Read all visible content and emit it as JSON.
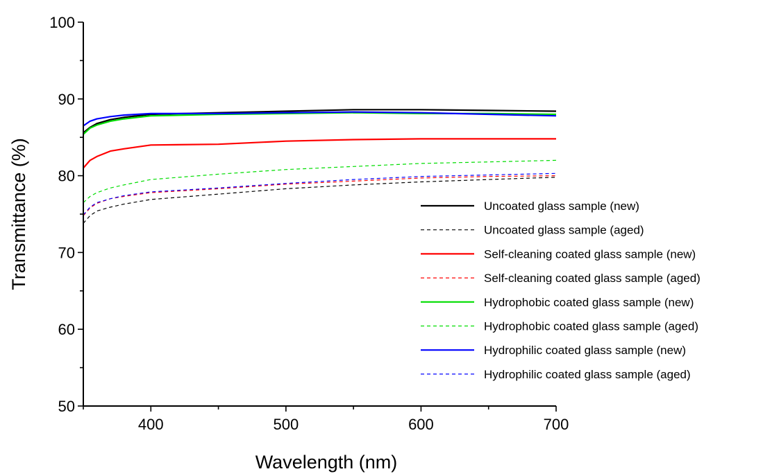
{
  "chart_data": {
    "type": "line",
    "title": "",
    "xlabel": "Wavelength (nm)",
    "ylabel": "Transmittance (%)",
    "xlim": [
      350,
      700
    ],
    "ylim": [
      50,
      100
    ],
    "xticks": [
      400,
      500,
      600,
      700
    ],
    "yticks": [
      50,
      60,
      70,
      80,
      90,
      100
    ],
    "grid": false,
    "legend": "center-right",
    "series": [
      {
        "name": "Uncoated  glass sample (new)",
        "color": "#000000",
        "dash": false,
        "x": [
          350,
          355,
          360,
          370,
          380,
          400,
          450,
          500,
          550,
          600,
          650,
          700
        ],
        "y": [
          85.6,
          86.3,
          86.8,
          87.3,
          87.6,
          88.0,
          88.2,
          88.4,
          88.6,
          88.6,
          88.5,
          88.4
        ]
      },
      {
        "name": "Uncoated  glass sample (aged)",
        "color": "#000000",
        "dash": true,
        "x": [
          350,
          355,
          360,
          370,
          380,
          400,
          450,
          500,
          550,
          600,
          650,
          700
        ],
        "y": [
          73.8,
          74.8,
          75.4,
          75.9,
          76.3,
          76.9,
          77.6,
          78.3,
          78.8,
          79.2,
          79.5,
          79.8
        ]
      },
      {
        "name": "Self-cleaning coated  glass sample (new)",
        "color": "#ff0000",
        "dash": false,
        "x": [
          350,
          355,
          360,
          370,
          380,
          400,
          450,
          500,
          550,
          600,
          650,
          700
        ],
        "y": [
          81.0,
          82.0,
          82.5,
          83.2,
          83.5,
          84.0,
          84.1,
          84.5,
          84.7,
          84.8,
          84.8,
          84.8
        ]
      },
      {
        "name": "Self-cleaning coated  glass sample (aged)",
        "color": "#ff0000",
        "dash": true,
        "x": [
          350,
          355,
          360,
          370,
          380,
          400,
          450,
          500,
          550,
          600,
          650,
          700
        ],
        "y": [
          74.8,
          75.8,
          76.4,
          77.0,
          77.3,
          77.8,
          78.3,
          78.9,
          79.3,
          79.7,
          79.9,
          80.0
        ]
      },
      {
        "name": "Hydrophobic coated  glass sample (new)",
        "color": "#00dd00",
        "dash": false,
        "x": [
          350,
          355,
          360,
          370,
          380,
          400,
          450,
          500,
          550,
          600,
          650,
          700
        ],
        "y": [
          85.4,
          86.2,
          86.6,
          87.1,
          87.4,
          87.8,
          88.0,
          88.1,
          88.2,
          88.1,
          88.1,
          88.0
        ]
      },
      {
        "name": "Hydrophobic coated  glass sample (aged)",
        "color": "#00dd00",
        "dash": true,
        "x": [
          350,
          355,
          360,
          370,
          380,
          400,
          450,
          500,
          550,
          600,
          650,
          700
        ],
        "y": [
          76.5,
          77.3,
          77.8,
          78.4,
          78.8,
          79.5,
          80.2,
          80.8,
          81.2,
          81.6,
          81.8,
          82.0
        ]
      },
      {
        "name": "Hydrophilic coated  glass sample (new)",
        "color": "#0000ff",
        "dash": false,
        "x": [
          350,
          355,
          360,
          370,
          380,
          400,
          450,
          500,
          550,
          600,
          650,
          700
        ],
        "y": [
          86.5,
          87.1,
          87.4,
          87.7,
          87.9,
          88.1,
          88.1,
          88.2,
          88.3,
          88.2,
          88.0,
          87.8
        ]
      },
      {
        "name": "Hydrophilic coated  glass sample (aged)",
        "color": "#0000ff",
        "dash": true,
        "x": [
          350,
          355,
          360,
          370,
          380,
          400,
          450,
          500,
          550,
          600,
          650,
          700
        ],
        "y": [
          74.9,
          75.9,
          76.5,
          77.0,
          77.4,
          77.9,
          78.4,
          79.0,
          79.5,
          79.9,
          80.1,
          80.3
        ]
      }
    ]
  }
}
